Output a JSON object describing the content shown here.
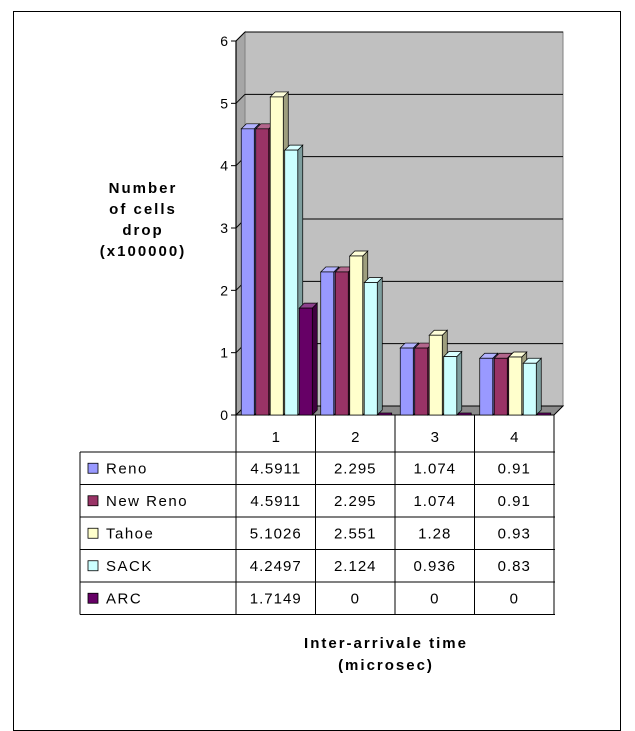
{
  "chart_data": {
    "type": "bar",
    "ylabel_lines": [
      "Number",
      "of cells",
      "drop",
      "(x100000)"
    ],
    "xlabel_lines": [
      "Inter-arrivale time",
      "(microsec)"
    ],
    "categories": [
      "1",
      "2",
      "3",
      "4"
    ],
    "y_ticks": [
      "0",
      "1",
      "2",
      "3",
      "4",
      "5",
      "6"
    ],
    "ylim": [
      0,
      6
    ],
    "grid": true,
    "legend": "data-table",
    "series": [
      {
        "name": "Reno",
        "color": "#9999ff",
        "values": [
          4.5911,
          2.295,
          1.074,
          0.91
        ]
      },
      {
        "name": "New Reno",
        "color": "#993366",
        "values": [
          4.5911,
          2.295,
          1.074,
          0.91
        ]
      },
      {
        "name": "Tahoe",
        "color": "#ffffcc",
        "values": [
          5.1026,
          2.551,
          1.28,
          0.93
        ]
      },
      {
        "name": "SACK",
        "color": "#ccffff",
        "values": [
          4.2497,
          2.124,
          0.936,
          0.83
        ]
      },
      {
        "name": "ARC",
        "color": "#660066",
        "values": [
          1.7149,
          0,
          0,
          0
        ]
      }
    ],
    "table_values": [
      [
        "4.5911",
        "2.295",
        "1.074",
        "0.91"
      ],
      [
        "4.5911",
        "2.295",
        "1.074",
        "0.91"
      ],
      [
        "5.1026",
        "2.551",
        "1.28",
        "0.93"
      ],
      [
        "4.2497",
        "2.124",
        "0.936",
        "0.83"
      ],
      [
        "1.7149",
        "0",
        "0",
        "0"
      ]
    ],
    "plot_background": "#c0c0c0"
  }
}
